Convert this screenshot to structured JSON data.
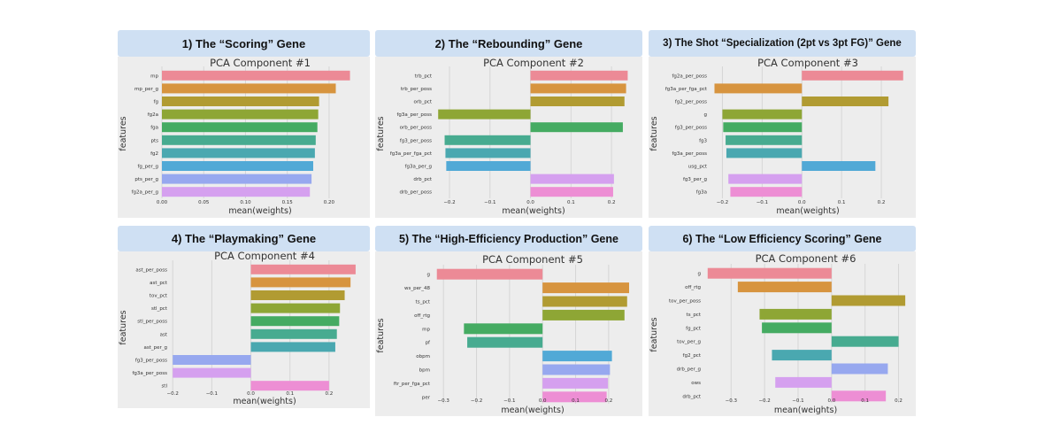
{
  "panels": [
    {
      "header": "1)  The “Scoring” Gene"
    },
    {
      "header": "2)  The “Rebounding” Gene"
    },
    {
      "header": "3)  The Shot “Specialization (2pt vs 3pt FG)” Gene"
    },
    {
      "header": "4)  The “Playmaking” Gene"
    },
    {
      "header": "5)  The “High-Efficiency Production” Gene"
    },
    {
      "header": "6)  The “Low Efficiency Scoring” Gene"
    }
  ],
  "palette": [
    "#ec8a96",
    "#d7943f",
    "#b19b32",
    "#8ea635",
    "#45ab62",
    "#47ab90",
    "#4aa8b0",
    "#51a9d6",
    "#97a8ef",
    "#d5a0ef",
    "#ed8ed4"
  ],
  "chart_data": [
    {
      "type": "bar",
      "orientation": "horizontal",
      "title": "PCA Component #1",
      "xlabel": "mean(weights)",
      "ylabel": "features",
      "categories": [
        "mp",
        "mp_per_g",
        "fg",
        "fg2a",
        "fga",
        "pts",
        "fg2",
        "fg_per_g",
        "pts_per_g",
        "fg2a_per_g"
      ],
      "values": [
        0.225,
        0.208,
        0.188,
        0.187,
        0.186,
        0.184,
        0.183,
        0.181,
        0.179,
        0.177
      ],
      "xlim": [
        0.0,
        0.235
      ],
      "xticks": [
        0.0,
        0.05,
        0.1,
        0.15,
        0.2
      ],
      "xtick_labels": [
        "0.00",
        "0.05",
        "0.10",
        "0.15",
        "0.20"
      ],
      "colors": [
        "#ec8a96",
        "#d7943f",
        "#b19b32",
        "#8ea635",
        "#45ab62",
        "#47ab90",
        "#4aa8b0",
        "#51a9d6",
        "#97a8ef",
        "#d5a0ef"
      ]
    },
    {
      "type": "bar",
      "orientation": "horizontal",
      "title": "PCA Component #2",
      "xlabel": "mean(weights)",
      "ylabel": "features",
      "categories": [
        "trb_pct",
        "trb_per_poss",
        "orb_pct",
        "fg3a_per_poss",
        "orb_per_poss",
        "fg3_per_poss",
        "fg3a_per_fga_pct",
        "fg3a_per_g",
        "drb_pct",
        "drb_per_poss"
      ],
      "values": [
        0.24,
        0.236,
        0.232,
        -0.228,
        0.228,
        -0.212,
        -0.21,
        -0.208,
        0.206,
        0.204
      ],
      "xlim": [
        -0.235,
        0.25
      ],
      "xticks": [
        -0.2,
        -0.1,
        0.0,
        0.1,
        0.2
      ],
      "xtick_labels": [
        "−0.2",
        "−0.1",
        "0.0",
        "0.1",
        "0.2"
      ],
      "colors": [
        "#ec8a96",
        "#d7943f",
        "#b19b32",
        "#8ea635",
        "#45ab62",
        "#47ab90",
        "#4aa8b0",
        "#51a9d6",
        "#d5a0ef",
        "#ed8ed4"
      ]
    },
    {
      "type": "bar",
      "orientation": "horizontal",
      "title": "PCA Component #3",
      "xlabel": "mean(weights)",
      "ylabel": "features",
      "categories": [
        "fg2a_per_poss",
        "fg3a_per_fga_pct",
        "fg2_per_poss",
        "g",
        "fg3_per_poss",
        "fg3",
        "fg3a_per_poss",
        "usg_pct",
        "fg3_per_g",
        "fg3a"
      ],
      "values": [
        0.255,
        -0.22,
        0.218,
        -0.2,
        -0.198,
        -0.192,
        -0.19,
        0.185,
        -0.185,
        -0.18
      ],
      "xlim": [
        -0.23,
        0.26
      ],
      "xticks": [
        -0.2,
        -0.1,
        0.0,
        0.1,
        0.2
      ],
      "xtick_labels": [
        "−0.2",
        "−0.1",
        "0.0",
        "0.1",
        "0.2"
      ],
      "colors": [
        "#ec8a96",
        "#d7943f",
        "#b19b32",
        "#8ea635",
        "#45ab62",
        "#47ab90",
        "#4aa8b0",
        "#51a9d6",
        "#d5a0ef",
        "#ed8ed4"
      ]
    },
    {
      "type": "bar",
      "orientation": "horizontal",
      "title": "PCA Component #4",
      "xlabel": "mean(weights)",
      "ylabel": "features",
      "categories": [
        "ast_per_poss",
        "ast_pct",
        "tov_pct",
        "stl_pct",
        "stl_per_poss",
        "ast",
        "ast_per_g",
        "fg3_per_poss",
        "fg3a_per_poss",
        "stl"
      ],
      "values": [
        0.268,
        0.255,
        0.24,
        0.228,
        0.226,
        0.22,
        0.216,
        -0.2,
        -0.2,
        0.2
      ],
      "xlim": [
        -0.205,
        0.275
      ],
      "xticks": [
        -0.2,
        -0.1,
        0.0,
        0.1,
        0.2
      ],
      "xtick_labels": [
        "−0.2",
        "−0.1",
        "0.0",
        "0.1",
        "0.2"
      ],
      "colors": [
        "#ec8a96",
        "#d7943f",
        "#b19b32",
        "#8ea635",
        "#45ab62",
        "#47ab90",
        "#4aa8b0",
        "#97a8ef",
        "#d5a0ef",
        "#ed8ed4"
      ]
    },
    {
      "type": "bar",
      "orientation": "horizontal",
      "title": "PCA Component #5",
      "xlabel": "mean(weights)",
      "ylabel": "features",
      "categories": [
        "g",
        "ws_per_48",
        "ts_pct",
        "off_rtg",
        "mp",
        "pf",
        "obpm",
        "bpm",
        "ftr_per_fga_pct",
        "per"
      ],
      "values": [
        -0.32,
        0.262,
        0.256,
        0.248,
        -0.238,
        -0.228,
        0.21,
        0.204,
        0.198,
        0.194
      ],
      "xlim": [
        -0.33,
        0.27
      ],
      "xticks": [
        -0.3,
        -0.2,
        -0.1,
        0.0,
        0.1,
        0.2
      ],
      "xtick_labels": [
        "−0.3",
        "−0.2",
        "−0.1",
        "0.0",
        "0.1",
        "0.2"
      ],
      "colors": [
        "#ec8a96",
        "#d7943f",
        "#b19b32",
        "#8ea635",
        "#45ab62",
        "#47ab90",
        "#51a9d6",
        "#97a8ef",
        "#d5a0ef",
        "#ed8ed4"
      ]
    },
    {
      "type": "bar",
      "orientation": "horizontal",
      "title": "PCA Component #6",
      "xlabel": "mean(weights)",
      "ylabel": "features",
      "categories": [
        "g",
        "off_rtg",
        "tov_per_poss",
        "ts_pct",
        "fg_pct",
        "tov_per_g",
        "fg2_pct",
        "drb_per_g",
        "ows",
        "drb_pct"
      ],
      "values": [
        -0.37,
        -0.28,
        0.22,
        -0.215,
        -0.208,
        0.2,
        -0.178,
        0.168,
        -0.168,
        0.162
      ],
      "xlim": [
        -0.38,
        0.225
      ],
      "xticks": [
        -0.3,
        -0.2,
        -0.1,
        0.0,
        0.1,
        0.2
      ],
      "xtick_labels": [
        "−0.3",
        "−0.2",
        "−0.1",
        "0.0",
        "0.1",
        "0.2"
      ],
      "colors": [
        "#ec8a96",
        "#d7943f",
        "#b19b32",
        "#8ea635",
        "#45ab62",
        "#47ab90",
        "#4aa8b0",
        "#97a8ef",
        "#d5a0ef",
        "#ed8ed4"
      ]
    }
  ]
}
